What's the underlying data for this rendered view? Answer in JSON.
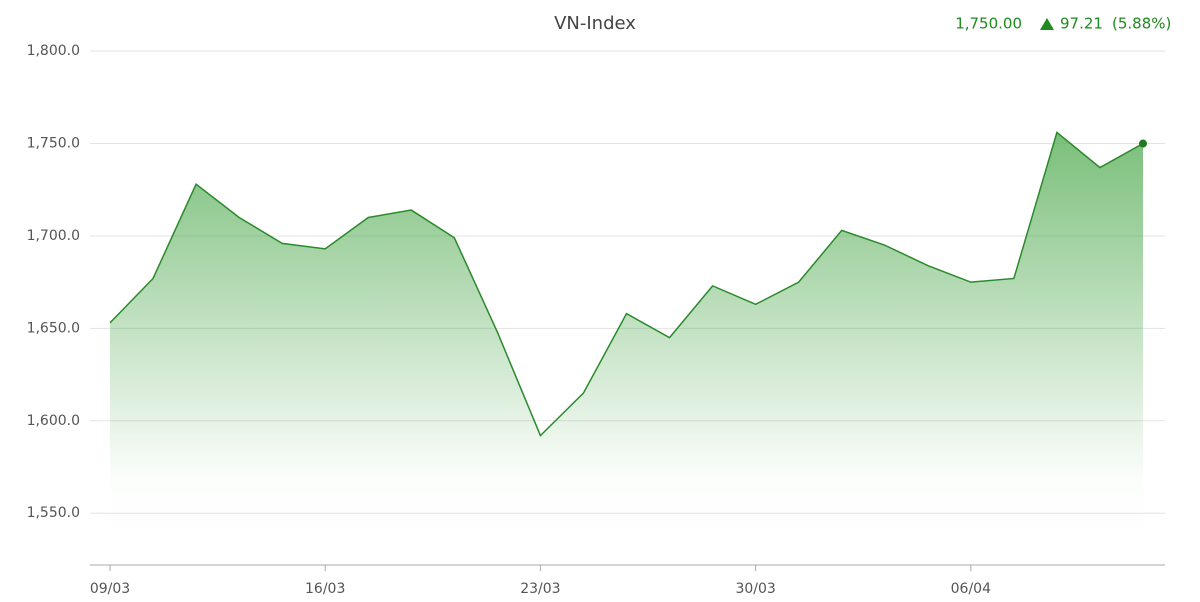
{
  "chart_data": {
    "type": "area",
    "title": "VN-Index",
    "last": "1,750.00",
    "change": "97.21",
    "change_pct": "(5.88%)",
    "color": "#2a8a2a",
    "categories": [
      "09/03",
      null,
      null,
      null,
      null,
      "16/03",
      null,
      null,
      null,
      null,
      "23/03",
      null,
      null,
      null,
      null,
      "30/03",
      null,
      null,
      null,
      null,
      "06/04",
      null,
      null,
      null,
      null
    ],
    "values": [
      1653,
      1677,
      1728,
      1710,
      1696,
      1693,
      1710,
      1714,
      1699,
      1648,
      1592,
      1615,
      1658,
      1645,
      1673,
      1663,
      1675,
      1703,
      1695,
      1684,
      1675,
      1677,
      1756,
      1737,
      1750
    ],
    "ylim": [
      1522,
      1806
    ],
    "yticks": [
      {
        "value": 1550,
        "label": "1,550.0"
      },
      {
        "value": 1600,
        "label": "1,600.0"
      },
      {
        "value": 1650,
        "label": "1,650.0"
      },
      {
        "value": 1700,
        "label": "1,700.0"
      },
      {
        "value": 1750,
        "label": "1,750.0"
      },
      {
        "value": 1800,
        "label": "1,800.0"
      }
    ],
    "grid": true
  }
}
